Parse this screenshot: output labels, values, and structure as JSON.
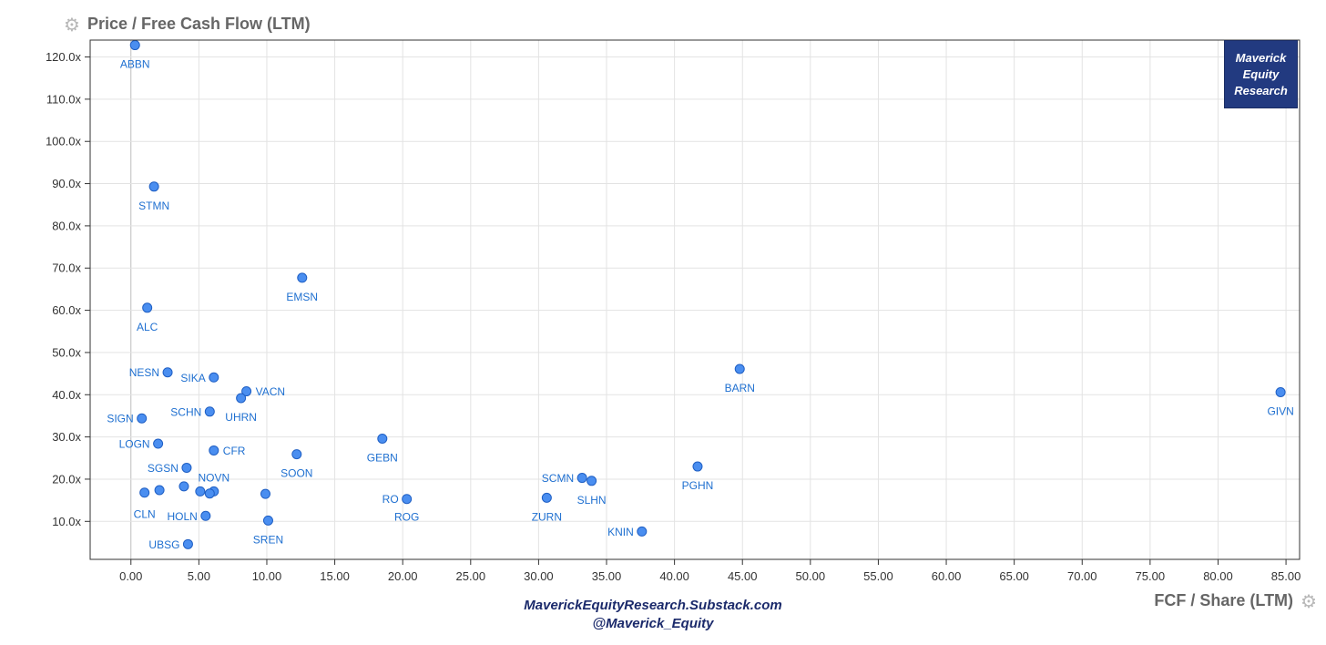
{
  "chart_data": {
    "type": "scatter",
    "title": "Price / Free Cash Flow (LTM)",
    "xlabel": "FCF / Share (LTM)",
    "ylabel": "Price / Free Cash Flow (LTM)",
    "xlim": [
      -3,
      86
    ],
    "ylim": [
      1,
      124
    ],
    "x_ticks": [
      0,
      5,
      10,
      15,
      20,
      25,
      30,
      35,
      40,
      45,
      50,
      55,
      60,
      65,
      70,
      75,
      80,
      85
    ],
    "x_tick_labels": [
      "0.00",
      "5.00",
      "10.00",
      "15.00",
      "20.00",
      "25.00",
      "30.00",
      "35.00",
      "40.00",
      "45.00",
      "50.00",
      "55.00",
      "60.00",
      "65.00",
      "70.00",
      "75.00",
      "80.00",
      "85.00"
    ],
    "y_ticks": [
      10,
      20,
      30,
      40,
      50,
      60,
      70,
      80,
      90,
      100,
      110,
      120
    ],
    "y_tick_labels": [
      "10.0x",
      "20.0x",
      "30.0x",
      "40.0x",
      "50.0x",
      "60.0x",
      "70.0x",
      "80.0x",
      "90.0x",
      "100.0x",
      "110.0x",
      "120.0x"
    ],
    "grid": true,
    "colors": {
      "point": "#4a8ef0",
      "point_stroke": "#1f5fc4",
      "label": "#1e6fd0",
      "grid": "#e3e3e3",
      "axis": "#333333",
      "tick_text": "#333333"
    },
    "points": [
      {
        "label": "ABBN",
        "x": 0.3,
        "y": 122.8,
        "pos": "below"
      },
      {
        "label": "STMN",
        "x": 1.7,
        "y": 89.3,
        "pos": "below"
      },
      {
        "label": "EMSN",
        "x": 12.6,
        "y": 67.7,
        "pos": "below"
      },
      {
        "label": "ALC",
        "x": 1.2,
        "y": 60.6,
        "pos": "below"
      },
      {
        "label": "NESN",
        "x": 2.7,
        "y": 45.3,
        "pos": "left"
      },
      {
        "label": "SIKA",
        "x": 6.1,
        "y": 44.1,
        "pos": "left"
      },
      {
        "label": "VACN",
        "x": 8.5,
        "y": 40.8,
        "pos": "right"
      },
      {
        "label": "UHRN",
        "x": 8.1,
        "y": 39.2,
        "pos": "below"
      },
      {
        "label": "SCHN",
        "x": 5.8,
        "y": 36.0,
        "pos": "left"
      },
      {
        "label": "SIGN",
        "x": 0.8,
        "y": 34.4,
        "pos": "left"
      },
      {
        "label": "LOGN",
        "x": 2.0,
        "y": 28.4,
        "pos": "left"
      },
      {
        "label": "CFR",
        "x": 6.1,
        "y": 26.8,
        "pos": "right"
      },
      {
        "label": "SOON",
        "x": 12.2,
        "y": 25.9,
        "pos": "below"
      },
      {
        "label": "GEBN",
        "x": 18.5,
        "y": 29.6,
        "pos": "below"
      },
      {
        "label": "SGSN",
        "x": 4.1,
        "y": 22.7,
        "pos": "left"
      },
      {
        "label": "NOVN",
        "x": 6.1,
        "y": 17.1,
        "pos": "above"
      },
      {
        "label": "",
        "x": 1.0,
        "y": 16.8,
        "pos": "none"
      },
      {
        "label": "",
        "x": 2.1,
        "y": 17.4,
        "pos": "none"
      },
      {
        "label": "",
        "x": 3.9,
        "y": 18.3,
        "pos": "none"
      },
      {
        "label": "",
        "x": 5.1,
        "y": 17.1,
        "pos": "none"
      },
      {
        "label": "",
        "x": 5.8,
        "y": 16.6,
        "pos": "none"
      },
      {
        "label": "",
        "x": 9.9,
        "y": 16.5,
        "pos": "none"
      },
      {
        "label": "CLN",
        "x": 1.0,
        "y": 16.0,
        "pos": "labelonly_below"
      },
      {
        "label": "HOLN",
        "x": 5.5,
        "y": 11.3,
        "pos": "left"
      },
      {
        "label": "SREN",
        "x": 10.1,
        "y": 10.2,
        "pos": "below"
      },
      {
        "label": "UBSG",
        "x": 4.2,
        "y": 4.6,
        "pos": "left"
      },
      {
        "label": "RO",
        "x": 20.3,
        "y": 15.3,
        "pos": "left"
      },
      {
        "label": "ROG",
        "x": 20.3,
        "y": 15.3,
        "pos": "labelonly_below"
      },
      {
        "label": "SCMN",
        "x": 33.2,
        "y": 20.3,
        "pos": "left"
      },
      {
        "label": "SLHN",
        "x": 33.9,
        "y": 19.6,
        "pos": "below"
      },
      {
        "label": "ZURN",
        "x": 30.6,
        "y": 15.6,
        "pos": "below"
      },
      {
        "label": "KNIN",
        "x": 37.6,
        "y": 7.6,
        "pos": "left"
      },
      {
        "label": "PGHN",
        "x": 41.7,
        "y": 23.0,
        "pos": "below"
      },
      {
        "label": "BARN",
        "x": 44.8,
        "y": 46.1,
        "pos": "below"
      },
      {
        "label": "GIVN",
        "x": 84.6,
        "y": 40.6,
        "pos": "below"
      }
    ]
  },
  "header": {
    "gear_icon": "gear-icon"
  },
  "credits": {
    "line1": "MaverickEquityResearch.Substack.com",
    "line2": "@Maverick_Equity"
  },
  "brand": {
    "line1": "Maverick",
    "line2": "Equity",
    "line3": "Research"
  }
}
